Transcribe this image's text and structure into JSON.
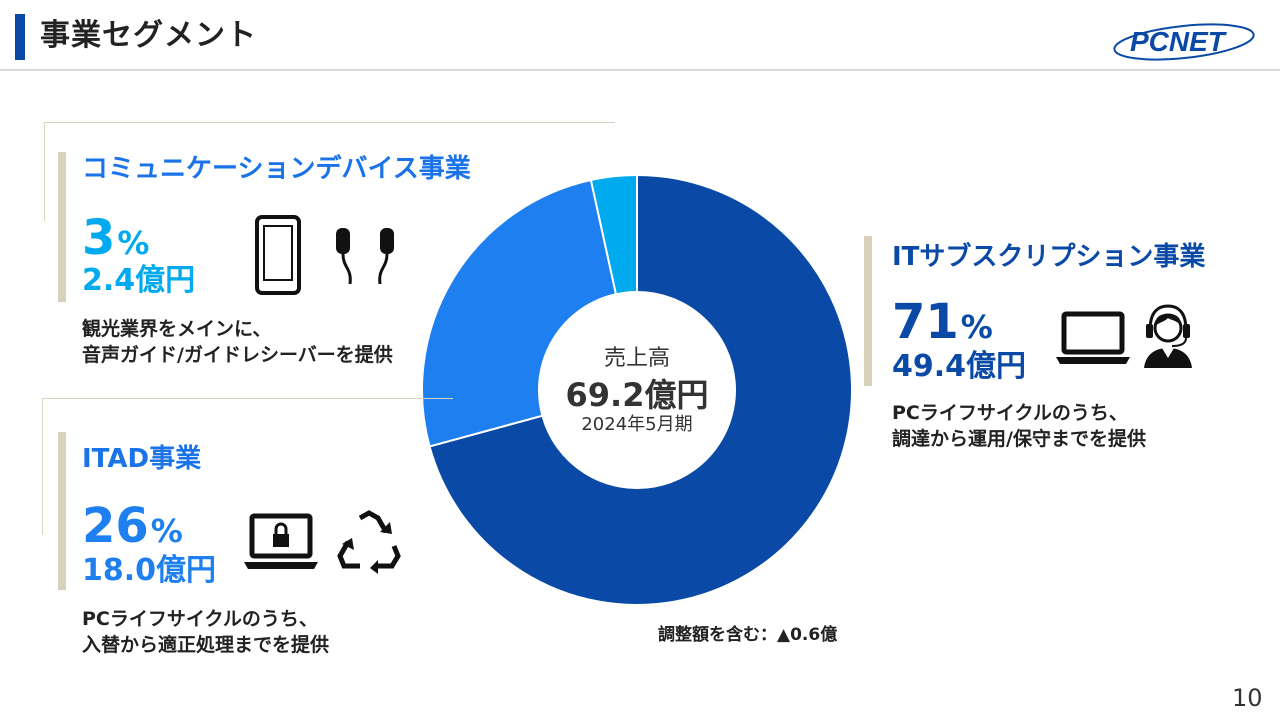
{
  "header": {
    "title": "事業セグメント",
    "logo_text": "PCNET"
  },
  "page_number": "10",
  "center": {
    "label": "売上高",
    "total": "69.2億円",
    "period": "2024年5月期"
  },
  "segments": [
    {
      "name": "コミュニケーションデバイス事業",
      "percent": "3",
      "percent_unit": "%",
      "amount": "2.4億円",
      "desc_line1": "観光業界をメインに、",
      "desc_line2": "音声ガイド/ガイドレシーバーを提供",
      "color": "#00aaee",
      "icons": [
        "smartphone-icon",
        "earphones-icon"
      ]
    },
    {
      "name": "ITAD事業",
      "percent": "26",
      "percent_unit": "%",
      "amount": "18.0億円",
      "desc_line1": "PCライフサイクルのうち、",
      "desc_line2": "入替から適正処理までを提供",
      "color": "#1e7ff0",
      "icons": [
        "laptop-lock-icon",
        "recycle-icon"
      ]
    },
    {
      "name": "ITサブスクリプション事業",
      "percent": "71",
      "percent_unit": "%",
      "amount": "49.4億円",
      "desc_line1": "PCライフサイクルのうち、",
      "desc_line2": "調達から運用/保守までを提供",
      "color": "#0a4aa6",
      "icons": [
        "laptop-icon",
        "support-operator-icon"
      ]
    }
  ],
  "note": "調整額を含む：▲0.6億",
  "chart_data": {
    "type": "pie",
    "title": "",
    "donut": true,
    "start": "12 o'clock, clockwise",
    "labels": [
      "ITサブスクリプション事業",
      "ITAD事業",
      "コミュニケーションデバイス事業"
    ],
    "values": [
      49.4,
      18.0,
      2.4
    ],
    "percents": [
      71,
      26,
      3
    ],
    "colors": [
      "#0a4aa6",
      "#1e7ff0",
      "#00aaee"
    ],
    "center_text": [
      "売上高",
      "69.2億円",
      "2024年5月期"
    ]
  }
}
